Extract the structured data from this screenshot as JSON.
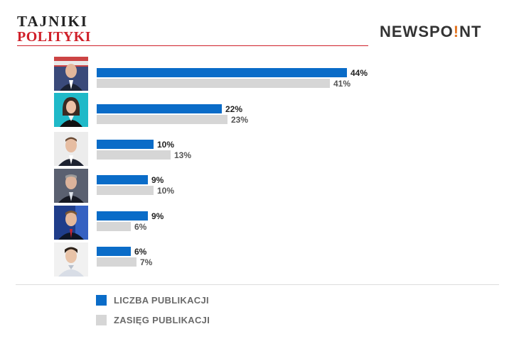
{
  "header": {
    "brand_left_line1": "TAJNIKI",
    "brand_left_line2": "POLITYKI",
    "brand_right_a": "NEWSPO",
    "brand_right_dot": "!",
    "brand_right_b": "NT"
  },
  "colors": {
    "primary": "#0a6cc8",
    "secondary": "#d6d6d6",
    "accent": "#d0202a"
  },
  "chart_data": {
    "type": "bar",
    "orientation": "horizontal",
    "categories": [
      "",
      "",
      "",
      "",
      "",
      ""
    ],
    "series": [
      {
        "name": "LICZBA PUBLIKACJI",
        "values": [
          44,
          22,
          10,
          9,
          9,
          6
        ]
      },
      {
        "name": "ZASIĘG PUBLIKACJI",
        "values": [
          41,
          23,
          13,
          10,
          6,
          7
        ]
      }
    ],
    "value_suffix": "%",
    "xlim": [
      0,
      100
    ],
    "grid": false,
    "legend_position": "bottom-left"
  }
}
